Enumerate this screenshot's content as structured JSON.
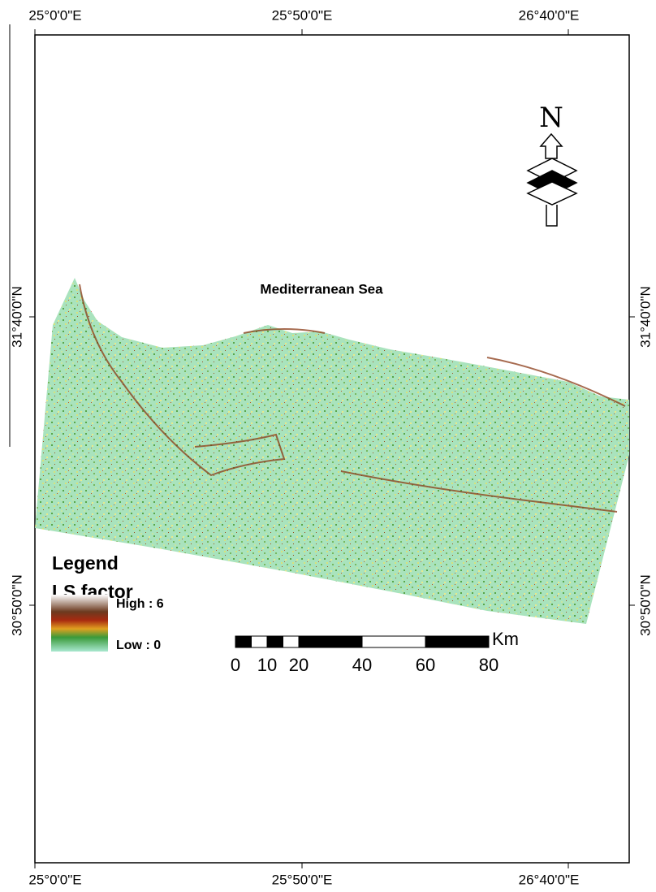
{
  "map": {
    "graticule": {
      "top": [
        "25°0'0\"E",
        "25°50'0\"E",
        "26°40'0\"E"
      ],
      "bottom": [
        "25°0'0\"E",
        "25°50'0\"E",
        "26°40'0\"E"
      ],
      "left": [
        "31°40'0\"N",
        "30°50'0\"N"
      ],
      "right": [
        "31°40'0\"N",
        "30°50'0\"N"
      ]
    },
    "sea_label": "Mediterranean Sea",
    "north_arrow": "N",
    "legend": {
      "title": "Legend",
      "subtitle": "LS factor",
      "high": "High : 6",
      "low": "Low : 0"
    },
    "scale_bar": {
      "unit": "Km",
      "ticks": [
        0,
        10,
        20,
        40,
        60,
        80
      ]
    }
  }
}
